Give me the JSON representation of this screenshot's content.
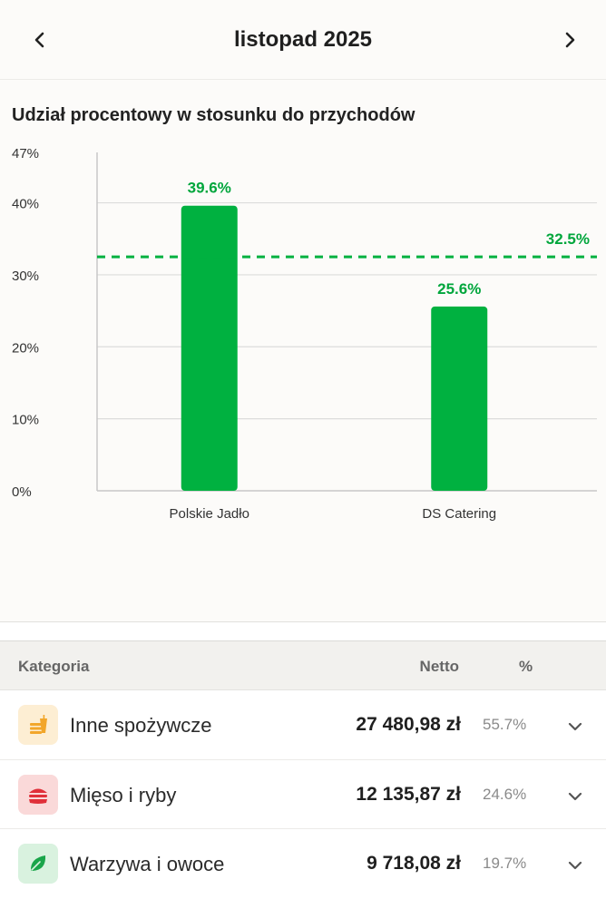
{
  "header": {
    "title": "listopad 2025"
  },
  "chart_section": {
    "title": "Udział procentowy w stosunku do przychodów"
  },
  "chart_data": {
    "type": "bar",
    "title": "Udział procentowy w stosunku do przychodów",
    "categories": [
      "Polskie Jadło",
      "DS Catering"
    ],
    "values": [
      39.6,
      25.6
    ],
    "value_labels": [
      "39.6%",
      "25.6%"
    ],
    "ylim": [
      0,
      47
    ],
    "yticks": [
      0,
      10,
      20,
      30,
      40,
      47
    ],
    "ytick_labels": [
      "0%",
      "10%",
      "20%",
      "30%",
      "40%",
      "47%"
    ],
    "reference_line": {
      "value": 32.5,
      "label": "32.5%",
      "style": "dashed"
    },
    "grid": true,
    "colors": {
      "bar": "#00b140",
      "label": "#00a63c",
      "grid": "#dcdcdc",
      "axis": "#c8c8c8"
    }
  },
  "table": {
    "headers": {
      "category": "Kategoria",
      "net": "Netto",
      "pct": "%"
    },
    "rows": [
      {
        "name": "Inne spożywcze",
        "net": "27 480,98 zł",
        "pct": "55.7%",
        "icon": "fastfood-icon",
        "icon_bg": "#fdeed3",
        "icon_color": "#f2a62a"
      },
      {
        "name": "Mięso i ryby",
        "net": "12 135,87 zł",
        "pct": "24.6%",
        "icon": "burger-icon",
        "icon_bg": "#fad9d9",
        "icon_color": "#e0303a"
      },
      {
        "name": "Warzywa i owoce",
        "net": "9 718,08 zł",
        "pct": "19.7%",
        "icon": "leaf-icon",
        "icon_bg": "#d9f2df",
        "icon_color": "#1aa54a"
      }
    ]
  }
}
